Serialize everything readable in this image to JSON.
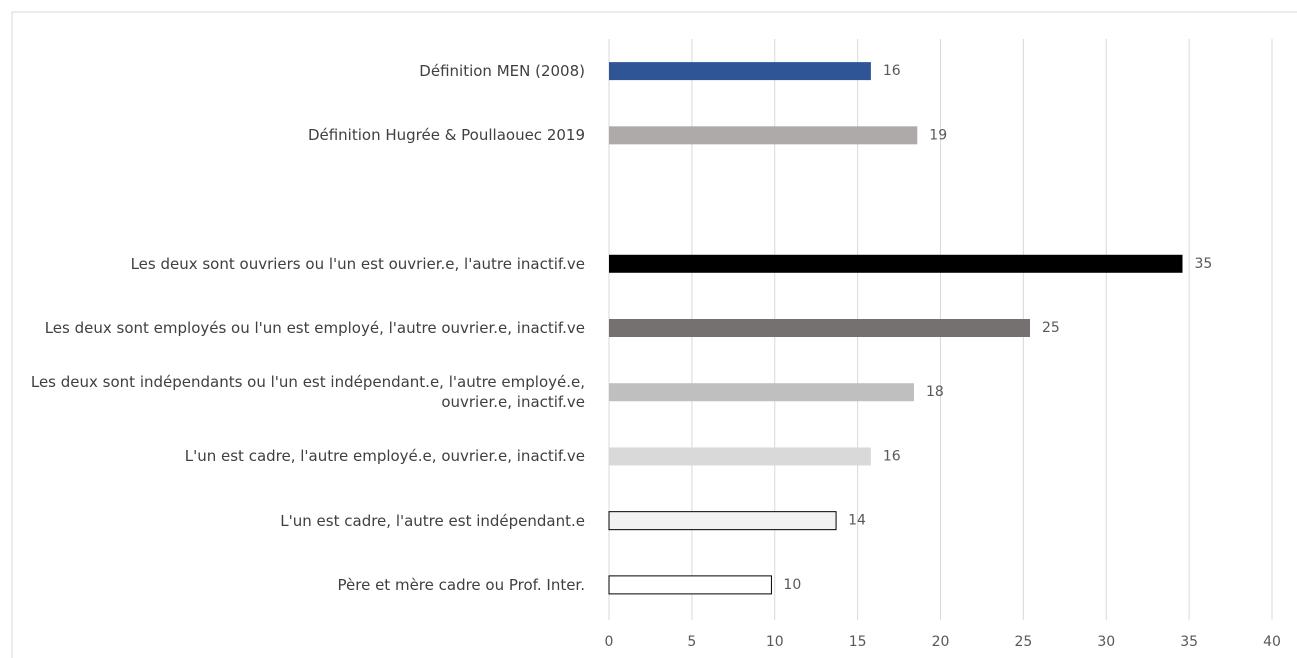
{
  "chart_data": {
    "type": "hbar",
    "categories": [
      "Définition MEN (2008)",
      "Définition Hugrée & Poullaouec 2019",
      null,
      "Les deux sont ouvriers ou l'un est ouvrier.e, l'autre inactif.ve",
      "Les deux sont employés ou l'un est employé, l'autre ouvrier.e, inactif.ve",
      "Les deux sont indépendants ou l'un est indépendant.e, l'autre employé.e, ouvrier.e, inactif.ve",
      "L'un est cadre, l'autre employé.e, ouvrier.e, inactif.ve",
      "L'un est cadre, l'autre est indépendant.e",
      "Père et mère cadre ou Prof. Inter."
    ],
    "values": [
      15.8,
      18.6,
      null,
      34.6,
      25.4,
      18.4,
      15.8,
      13.7,
      9.8
    ],
    "value_labels": [
      "16",
      "19",
      null,
      "35",
      "25",
      "18",
      "16",
      "14",
      "10"
    ],
    "colors": [
      "#2f5597",
      "#aeaaaa",
      null,
      "#000000",
      "#767171",
      "#bfbfbf",
      "#d9d9d9",
      "#f2f2f2",
      "#ffffff"
    ],
    "xlim": [
      0,
      40
    ],
    "xticks": [
      0,
      5,
      10,
      15,
      20,
      25,
      30,
      35,
      40
    ],
    "grid": true
  }
}
